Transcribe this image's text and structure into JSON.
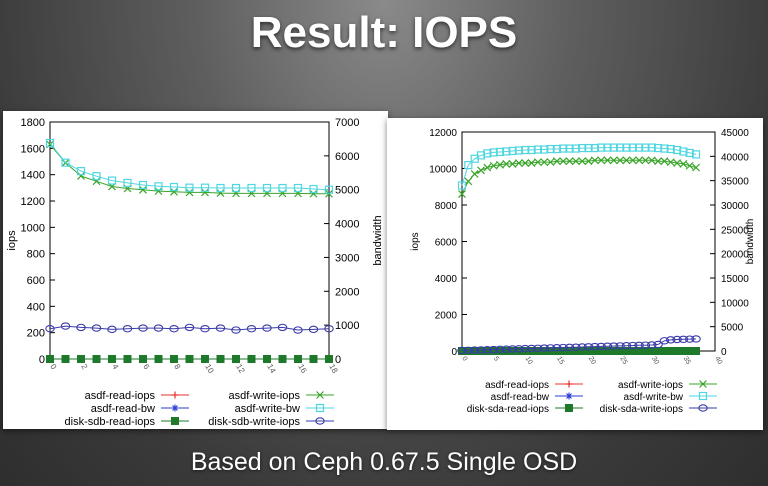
{
  "slide": {
    "title": "Result: IOPS",
    "footer": "Based on Ceph 0.67.5 Single OSD"
  },
  "chart_data": [
    {
      "type": "line",
      "ylabel": "iops",
      "y2label": "bandwidth",
      "ylim": [
        0,
        1800
      ],
      "y2lim": [
        0,
        7000
      ],
      "xlim": [
        0,
        18
      ],
      "y_ticks": [
        "0",
        "200",
        "400",
        "600",
        "800",
        "1000",
        "1200",
        "1400",
        "1600",
        "1800"
      ],
      "y2_ticks": [
        "0",
        "1000",
        "2000",
        "3000",
        "4000",
        "5000",
        "6000",
        "7000"
      ],
      "x_ticks": [
        "0",
        "2",
        "4",
        "6",
        "8",
        "10",
        "12",
        "14",
        "16",
        "18"
      ],
      "legend_position": "bottom",
      "series": [
        {
          "name": "asdf-read-iops",
          "axis": "y",
          "color": "#e8312f",
          "marker": "plus",
          "x": [
            0,
            1,
            2,
            3,
            4,
            5,
            6,
            7,
            8,
            9,
            10,
            11,
            12,
            13,
            14,
            15,
            16,
            17,
            18
          ],
          "values": [
            0,
            0,
            0,
            0,
            0,
            0,
            0,
            0,
            0,
            0,
            0,
            0,
            0,
            0,
            0,
            0,
            0,
            0,
            0
          ]
        },
        {
          "name": "asdf-write-iops",
          "axis": "y",
          "color": "#3aa52a",
          "marker": "cross",
          "x": [
            0,
            1,
            2,
            3,
            4,
            5,
            6,
            7,
            8,
            9,
            10,
            11,
            12,
            13,
            14,
            15,
            16,
            17,
            18
          ],
          "values": [
            1630,
            1490,
            1390,
            1350,
            1310,
            1295,
            1285,
            1275,
            1270,
            1265,
            1265,
            1260,
            1258,
            1258,
            1258,
            1258,
            1258,
            1255,
            1255
          ]
        },
        {
          "name": "asdf-read-bw",
          "axis": "y2",
          "color": "#2a3ed0",
          "marker": "star",
          "x": [
            0,
            1,
            2,
            3,
            4,
            5,
            6,
            7,
            8,
            9,
            10,
            11,
            12,
            13,
            14,
            15,
            16,
            17,
            18
          ],
          "values": [
            0,
            0,
            0,
            0,
            0,
            0,
            0,
            0,
            0,
            0,
            0,
            0,
            0,
            0,
            0,
            0,
            0,
            0,
            0
          ]
        },
        {
          "name": "asdf-write-bw",
          "axis": "y2",
          "color": "#4fd6e0",
          "marker": "square-open",
          "x": [
            0,
            1,
            2,
            3,
            4,
            5,
            6,
            7,
            8,
            9,
            10,
            11,
            12,
            13,
            14,
            15,
            16,
            17,
            18
          ],
          "values": [
            6380,
            5800,
            5550,
            5400,
            5270,
            5200,
            5140,
            5100,
            5080,
            5060,
            5060,
            5050,
            5050,
            5050,
            5050,
            5050,
            5050,
            5020,
            5000
          ]
        },
        {
          "name": "disk-sdb-read-iops",
          "axis": "y",
          "color": "#1e7a2a",
          "marker": "square-filled",
          "x": [
            0,
            1,
            2,
            3,
            4,
            5,
            6,
            7,
            8,
            9,
            10,
            11,
            12,
            13,
            14,
            15,
            16,
            17,
            18
          ],
          "values": [
            0,
            0,
            0,
            0,
            0,
            0,
            0,
            0,
            0,
            0,
            0,
            0,
            0,
            0,
            0,
            0,
            0,
            0,
            0
          ]
        },
        {
          "name": "disk-sdb-write-iops",
          "axis": "y",
          "color": "#3a3aa8",
          "marker": "circle-open",
          "x": [
            0,
            1,
            2,
            3,
            4,
            5,
            6,
            7,
            8,
            9,
            10,
            11,
            12,
            13,
            14,
            15,
            16,
            17,
            18
          ],
          "values": [
            230,
            250,
            240,
            235,
            225,
            230,
            235,
            235,
            230,
            240,
            230,
            235,
            220,
            230,
            235,
            240,
            220,
            225,
            230
          ]
        }
      ]
    },
    {
      "type": "line",
      "ylabel": "iops",
      "y2label": "bandwidth",
      "ylim": [
        0,
        12000
      ],
      "y2lim": [
        0,
        45000
      ],
      "xlim": [
        0,
        40
      ],
      "y_ticks": [
        "0",
        "2000",
        "4000",
        "6000",
        "8000",
        "10000",
        "12000"
      ],
      "y2_ticks": [
        "0",
        "5000",
        "10000",
        "15000",
        "20000",
        "25000",
        "30000",
        "35000",
        "40000",
        "45000"
      ],
      "x_ticks": [
        "0",
        "5",
        "10",
        "15",
        "20",
        "25",
        "30",
        "35",
        "40"
      ],
      "legend_position": "bottom",
      "series": [
        {
          "name": "asdf-read-iops",
          "axis": "y",
          "color": "#e8312f",
          "marker": "plus",
          "x": [
            0,
            1,
            2,
            3,
            4,
            5,
            6,
            7,
            8,
            9,
            10,
            11,
            12,
            13,
            14,
            15,
            16,
            17,
            18,
            19,
            20,
            21,
            22,
            23,
            24,
            25,
            26,
            27,
            28,
            29,
            30,
            31,
            32,
            33,
            34,
            35,
            36,
            37
          ],
          "values": [
            0,
            0,
            0,
            0,
            0,
            0,
            0,
            0,
            0,
            0,
            0,
            0,
            0,
            0,
            0,
            0,
            0,
            0,
            0,
            0,
            0,
            0,
            0,
            0,
            0,
            0,
            0,
            0,
            0,
            0,
            0,
            0,
            0,
            0,
            0,
            0,
            0,
            0
          ]
        },
        {
          "name": "asdf-write-iops",
          "axis": "y",
          "color": "#3aa52a",
          "marker": "cross",
          "x": [
            0,
            1,
            2,
            3,
            4,
            5,
            6,
            7,
            8,
            9,
            10,
            11,
            12,
            13,
            14,
            15,
            16,
            17,
            18,
            19,
            20,
            21,
            22,
            23,
            24,
            25,
            26,
            27,
            28,
            29,
            30,
            31,
            32,
            33,
            34,
            35,
            36,
            37
          ],
          "values": [
            8600,
            9300,
            9700,
            9900,
            10050,
            10150,
            10200,
            10250,
            10250,
            10300,
            10300,
            10300,
            10350,
            10350,
            10350,
            10400,
            10400,
            10400,
            10400,
            10400,
            10400,
            10450,
            10450,
            10450,
            10450,
            10450,
            10450,
            10450,
            10450,
            10450,
            10450,
            10400,
            10400,
            10350,
            10300,
            10250,
            10150,
            10050
          ]
        },
        {
          "name": "asdf-read-bw",
          "axis": "y2",
          "color": "#2a3ed0",
          "marker": "star",
          "x": [
            0,
            1,
            2,
            3,
            4,
            5,
            6,
            7,
            8,
            9,
            10,
            11,
            12,
            13,
            14,
            15,
            16,
            17,
            18,
            19,
            20,
            21,
            22,
            23,
            24,
            25,
            26,
            27,
            28,
            29,
            30,
            31,
            32,
            33,
            34,
            35,
            36,
            37
          ],
          "values": [
            0,
            0,
            0,
            0,
            0,
            0,
            0,
            0,
            0,
            0,
            0,
            0,
            0,
            0,
            0,
            0,
            0,
            0,
            0,
            0,
            0,
            0,
            0,
            0,
            0,
            0,
            0,
            0,
            0,
            0,
            0,
            0,
            0,
            0,
            0,
            0,
            0,
            0
          ]
        },
        {
          "name": "asdf-write-bw",
          "axis": "y2",
          "color": "#4fd6e0",
          "marker": "square-open",
          "x": [
            0,
            1,
            2,
            3,
            4,
            5,
            6,
            7,
            8,
            9,
            10,
            11,
            12,
            13,
            14,
            15,
            16,
            17,
            18,
            19,
            20,
            21,
            22,
            23,
            24,
            25,
            26,
            27,
            28,
            29,
            30,
            31,
            32,
            33,
            34,
            35,
            36,
            37
          ],
          "values": [
            34000,
            38200,
            39500,
            40200,
            40600,
            40800,
            40900,
            41000,
            41100,
            41200,
            41300,
            41300,
            41400,
            41400,
            41500,
            41500,
            41600,
            41600,
            41600,
            41700,
            41700,
            41700,
            41800,
            41800,
            41800,
            41800,
            41800,
            41800,
            41800,
            41800,
            41800,
            41700,
            41600,
            41500,
            41300,
            41000,
            40700,
            40400
          ]
        },
        {
          "name": "disk-sda-read-iops",
          "axis": "y",
          "color": "#1e7a2a",
          "marker": "square-filled",
          "x": [
            0,
            1,
            2,
            3,
            4,
            5,
            6,
            7,
            8,
            9,
            10,
            11,
            12,
            13,
            14,
            15,
            16,
            17,
            18,
            19,
            20,
            21,
            22,
            23,
            24,
            25,
            26,
            27,
            28,
            29,
            30,
            31,
            32,
            33,
            34,
            35,
            36,
            37
          ],
          "values": [
            0,
            0,
            0,
            0,
            0,
            0,
            0,
            0,
            0,
            0,
            0,
            0,
            0,
            0,
            0,
            0,
            0,
            0,
            0,
            0,
            0,
            0,
            0,
            0,
            0,
            0,
            0,
            0,
            0,
            0,
            0,
            0,
            0,
            0,
            0,
            0,
            0,
            0
          ]
        },
        {
          "name": "disk-sda-write-iops",
          "axis": "y",
          "color": "#3a3aa8",
          "marker": "circle-open",
          "x": [
            0,
            1,
            2,
            3,
            4,
            5,
            6,
            7,
            8,
            9,
            10,
            11,
            12,
            13,
            14,
            15,
            16,
            17,
            18,
            19,
            20,
            21,
            22,
            23,
            24,
            25,
            26,
            27,
            28,
            29,
            30,
            31,
            32,
            33,
            34,
            35,
            36,
            37
          ],
          "values": [
            30,
            40,
            50,
            60,
            70,
            80,
            90,
            100,
            110,
            120,
            130,
            140,
            150,
            160,
            170,
            180,
            190,
            200,
            210,
            220,
            230,
            240,
            250,
            260,
            270,
            280,
            290,
            300,
            310,
            320,
            330,
            360,
            560,
            610,
            630,
            640,
            650,
            660
          ]
        }
      ]
    }
  ]
}
